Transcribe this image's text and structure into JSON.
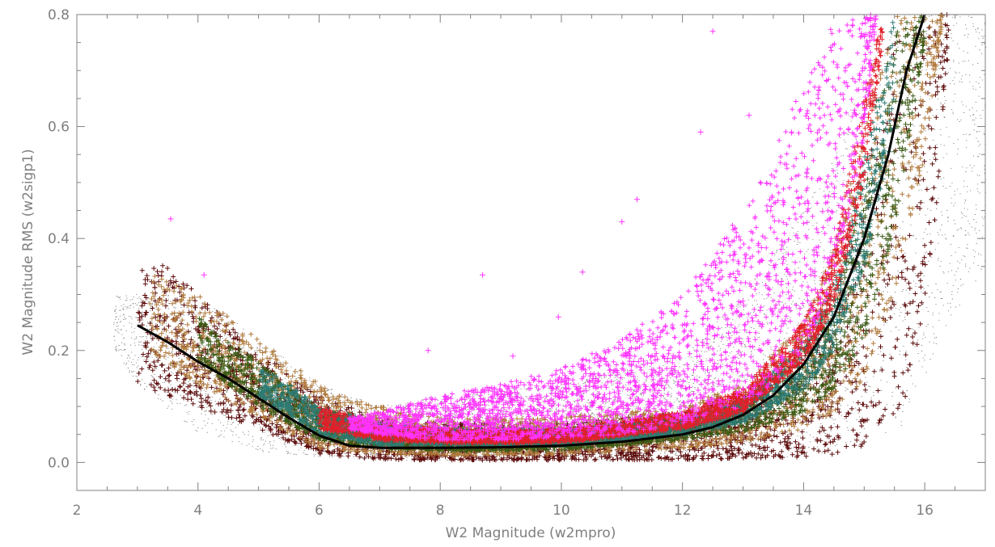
{
  "chart_data": {
    "type": "scatter",
    "title": "",
    "xlabel": "W2 Magnitude (w2mpro)",
    "ylabel": "W2 Magnitude RMS (w2sigp1)",
    "xlim": [
      2,
      17
    ],
    "ylim": [
      -0.05,
      0.8
    ],
    "x_ticks": [
      2,
      4,
      6,
      8,
      10,
      12,
      14,
      16
    ],
    "x_minor_step": 0.5,
    "y_ticks": [
      0.0,
      0.2,
      0.4,
      0.6,
      0.8
    ],
    "y_tick_labels": [
      "0.0",
      "0.2",
      "0.4",
      "0.6",
      "0.8"
    ],
    "y_minor_step": 0.05,
    "grid": false,
    "legend": "none",
    "colors": {
      "axis": "#808080",
      "gray_points": "#808080",
      "magenta_points": "#ff33ff",
      "dark_red_points": "#5c0a0a",
      "brown_points": "#b07a3c",
      "olive_points": "#3a5a14",
      "teal_points": "#2c7a72",
      "red_points": "#e0202a",
      "median_curve": "#000000"
    },
    "series": [
      {
        "color_key": "gray_points",
        "marker": "dot",
        "envelope": {
          "x": [
            2.6,
            3.0,
            4.0,
            5.0,
            6.0,
            7.0,
            8.0,
            10.0,
            12.0,
            13.0,
            14.0,
            15.0,
            15.6,
            16.0,
            16.4,
            17.0
          ],
          "lower": [
            0.2,
            0.14,
            0.05,
            0.02,
            0.01,
            0.003,
            0.002,
            0.002,
            0.003,
            0.006,
            0.01,
            0.03,
            0.06,
            0.15,
            0.25,
            0.35
          ],
          "upper": [
            0.3,
            0.3,
            0.3,
            0.22,
            0.14,
            0.1,
            0.12,
            0.14,
            0.2,
            0.3,
            0.45,
            0.7,
            0.8,
            0.8,
            0.8,
            0.8
          ]
        }
      },
      {
        "color_key": "dark_red_points",
        "marker": "plus",
        "envelope": {
          "x": [
            3.0,
            3.5,
            4.0,
            5.0,
            6.0,
            7.0,
            8.0,
            10.0,
            12.0,
            13.0,
            14.0,
            14.5,
            15.0,
            15.4,
            15.8,
            16.2,
            16.4
          ],
          "lower": [
            0.14,
            0.12,
            0.1,
            0.06,
            0.015,
            0.005,
            0.004,
            0.004,
            0.005,
            0.007,
            0.01,
            0.015,
            0.03,
            0.06,
            0.14,
            0.45,
            0.75
          ],
          "upper": [
            0.36,
            0.35,
            0.3,
            0.2,
            0.12,
            0.08,
            0.07,
            0.07,
            0.09,
            0.12,
            0.2,
            0.3,
            0.5,
            0.75,
            0.8,
            0.8,
            0.8
          ]
        }
      },
      {
        "color_key": "brown_points",
        "marker": "plus",
        "envelope": {
          "x": [
            3.2,
            4.0,
            5.0,
            6.0,
            7.0,
            8.0,
            10.0,
            12.0,
            13.0,
            14.0,
            14.5,
            15.0,
            15.5,
            16.0,
            16.3
          ],
          "lower": [
            0.2,
            0.14,
            0.08,
            0.025,
            0.015,
            0.012,
            0.014,
            0.025,
            0.035,
            0.06,
            0.09,
            0.15,
            0.3,
            0.55,
            0.8
          ],
          "upper": [
            0.34,
            0.3,
            0.22,
            0.14,
            0.1,
            0.08,
            0.08,
            0.1,
            0.14,
            0.25,
            0.38,
            0.6,
            0.8,
            0.8,
            0.8
          ]
        }
      },
      {
        "color_key": "olive_points",
        "marker": "plus",
        "envelope": {
          "x": [
            4.0,
            5.0,
            6.0,
            7.0,
            8.0,
            10.0,
            12.0,
            13.0,
            14.0,
            14.5,
            15.0,
            15.5,
            16.0
          ],
          "lower": [
            0.18,
            0.1,
            0.04,
            0.025,
            0.02,
            0.022,
            0.04,
            0.055,
            0.09,
            0.13,
            0.22,
            0.42,
            0.75
          ],
          "upper": [
            0.26,
            0.18,
            0.1,
            0.07,
            0.06,
            0.06,
            0.08,
            0.11,
            0.2,
            0.3,
            0.48,
            0.78,
            0.8
          ]
        }
      },
      {
        "color_key": "teal_points",
        "marker": "plus",
        "envelope": {
          "x": [
            5.0,
            6.0,
            7.0,
            8.0,
            10.0,
            12.0,
            13.0,
            14.0,
            14.5,
            15.0,
            15.5
          ],
          "lower": [
            0.12,
            0.05,
            0.03,
            0.03,
            0.03,
            0.05,
            0.07,
            0.13,
            0.2,
            0.35,
            0.6
          ],
          "upper": [
            0.18,
            0.1,
            0.07,
            0.06,
            0.06,
            0.08,
            0.11,
            0.22,
            0.32,
            0.55,
            0.8
          ]
        }
      },
      {
        "color_key": "red_points",
        "marker": "plus",
        "envelope": {
          "x": [
            6.0,
            7.0,
            8.0,
            10.0,
            12.0,
            13.0,
            14.0,
            14.5,
            15.0,
            15.3
          ],
          "lower": [
            0.06,
            0.04,
            0.035,
            0.035,
            0.06,
            0.09,
            0.18,
            0.28,
            0.5,
            0.75
          ],
          "upper": [
            0.1,
            0.07,
            0.06,
            0.06,
            0.09,
            0.13,
            0.25,
            0.38,
            0.65,
            0.8
          ]
        }
      },
      {
        "color_key": "magenta_points",
        "marker": "plus",
        "envelope": {
          "x": [
            6.5,
            7.0,
            8.0,
            9.0,
            10.0,
            11.0,
            12.0,
            13.0,
            13.5,
            14.0,
            14.5,
            15.0,
            15.2
          ],
          "lower": [
            0.06,
            0.05,
            0.04,
            0.04,
            0.045,
            0.05,
            0.07,
            0.1,
            0.14,
            0.2,
            0.32,
            0.55,
            0.8
          ],
          "upper": [
            0.08,
            0.09,
            0.12,
            0.14,
            0.17,
            0.22,
            0.3,
            0.45,
            0.55,
            0.68,
            0.8,
            0.8,
            0.8
          ]
        },
        "outliers": [
          {
            "x": 3.55,
            "y": 0.435
          },
          {
            "x": 8.7,
            "y": 0.335
          },
          {
            "x": 10.35,
            "y": 0.34
          },
          {
            "x": 11.0,
            "y": 0.43
          },
          {
            "x": 11.25,
            "y": 0.47
          },
          {
            "x": 12.5,
            "y": 0.77
          },
          {
            "x": 7.8,
            "y": 0.2
          },
          {
            "x": 9.2,
            "y": 0.19
          },
          {
            "x": 9.95,
            "y": 0.26
          },
          {
            "x": 12.3,
            "y": 0.59
          },
          {
            "x": 13.1,
            "y": 0.62
          },
          {
            "x": 4.1,
            "y": 0.335
          }
        ]
      }
    ],
    "median_curve": {
      "color_key": "median_curve",
      "x": [
        3.0,
        3.5,
        4.0,
        4.5,
        5.0,
        5.5,
        6.0,
        6.5,
        7.0,
        8.0,
        9.0,
        10.0,
        11.0,
        12.0,
        12.5,
        13.0,
        13.5,
        14.0,
        14.5,
        15.0,
        15.4,
        15.7,
        16.0
      ],
      "y": [
        0.245,
        0.215,
        0.18,
        0.15,
        0.115,
        0.08,
        0.048,
        0.03,
        0.026,
        0.026,
        0.027,
        0.03,
        0.037,
        0.05,
        0.063,
        0.085,
        0.12,
        0.175,
        0.26,
        0.4,
        0.55,
        0.7,
        0.8
      ]
    }
  }
}
